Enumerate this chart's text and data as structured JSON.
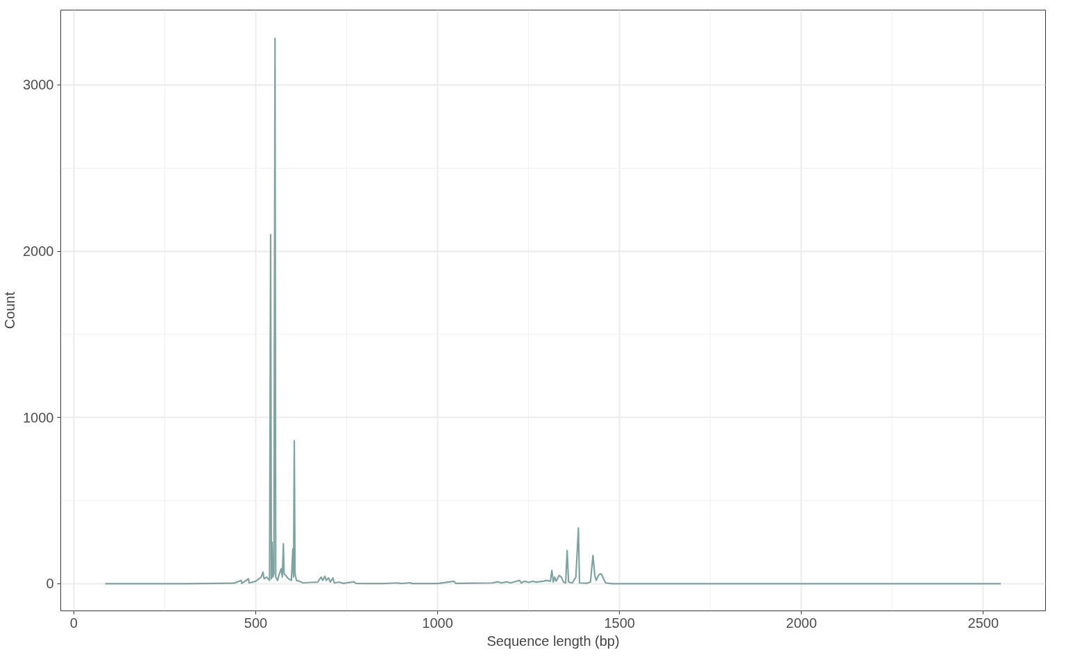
{
  "chart_data": {
    "type": "line",
    "xlabel": "Sequence length (bp)",
    "ylabel": "Count",
    "x": [
      86,
      300,
      400,
      440,
      460,
      462,
      480,
      482,
      500,
      515,
      520,
      523,
      530,
      538,
      541,
      543,
      545,
      547,
      550,
      553,
      555,
      560,
      565,
      570,
      573,
      576,
      578,
      582,
      590,
      598,
      602,
      604,
      606,
      608,
      612,
      620,
      630,
      650,
      670,
      680,
      684,
      690,
      694,
      700,
      705,
      712,
      716,
      730,
      740,
      770,
      775,
      800,
      850,
      890,
      900,
      925,
      930,
      1000,
      1045,
      1050,
      1100,
      1150,
      1165,
      1175,
      1190,
      1200,
      1225,
      1230,
      1240,
      1250,
      1262,
      1270,
      1290,
      1300,
      1310,
      1314,
      1318,
      1322,
      1326,
      1334,
      1340,
      1346,
      1352,
      1356,
      1360,
      1370,
      1380,
      1387,
      1390,
      1410,
      1420,
      1427,
      1432,
      1436,
      1442,
      1447,
      1451,
      1456,
      1462,
      1480,
      2548
    ],
    "series": [
      {
        "color": "#7fa3a0",
        "values": [
          0,
          0,
          2,
          3,
          20,
          2,
          30,
          5,
          15,
          40,
          70,
          30,
          40,
          20,
          2100,
          30,
          250,
          40,
          60,
          3280,
          40,
          20,
          60,
          90,
          40,
          240,
          60,
          50,
          30,
          20,
          210,
          40,
          860,
          60,
          20,
          15,
          5,
          8,
          10,
          40,
          20,
          45,
          20,
          35,
          10,
          35,
          5,
          10,
          2,
          12,
          2,
          1,
          1,
          5,
          1,
          6,
          1,
          1,
          15,
          2,
          3,
          5,
          12,
          5,
          12,
          5,
          20,
          5,
          15,
          8,
          15,
          10,
          15,
          20,
          15,
          80,
          10,
          40,
          15,
          50,
          40,
          10,
          5,
          200,
          10,
          5,
          40,
          335,
          5,
          3,
          10,
          170,
          50,
          20,
          50,
          60,
          55,
          30,
          5,
          0,
          0
        ]
      }
    ],
    "xlim": [
      -36,
      2671
    ],
    "ylim": [
      -163,
      3450
    ],
    "xticks": [
      0,
      500,
      1000,
      1500,
      2000,
      2500
    ],
    "yticks": [
      0,
      1000,
      2000,
      3000
    ],
    "grid": true,
    "line_style": "solid",
    "marker": "none"
  }
}
